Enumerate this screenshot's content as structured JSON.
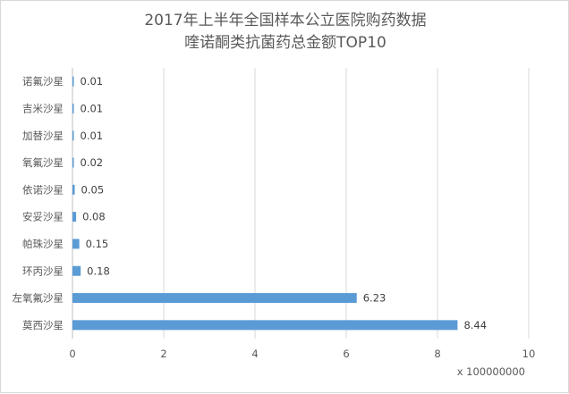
{
  "chart_data": {
    "type": "bar",
    "orientation": "horizontal",
    "title": "2017年上半年全国样本公立医院购药数据",
    "subtitle": "喹诺酮类抗菌药总金额TOP10",
    "categories": [
      "诺氟沙星",
      "吉米沙星",
      "加替沙星",
      "氧氟沙星",
      "依诺沙星",
      "安妥沙星",
      "帕珠沙星",
      "环丙沙星",
      "左氧氟沙星",
      "莫西沙星"
    ],
    "values": [
      0.01,
      0.01,
      0.01,
      0.02,
      0.05,
      0.08,
      0.15,
      0.18,
      6.23,
      8.44
    ],
    "value_labels": [
      "0.01",
      "0.01",
      "0.01",
      "0.02",
      "0.05",
      "0.08",
      "0.15",
      "0.18",
      "6.23",
      "8.44"
    ],
    "xlim": [
      0,
      10
    ],
    "xticks": [
      "0",
      "2",
      "4",
      "6",
      "8",
      "10"
    ],
    "x_unit": "x 100000000",
    "grid": "vertical",
    "bar_color": "#5b9bd5",
    "grid_color": "#d9d9d9",
    "text_color": "#595959"
  }
}
